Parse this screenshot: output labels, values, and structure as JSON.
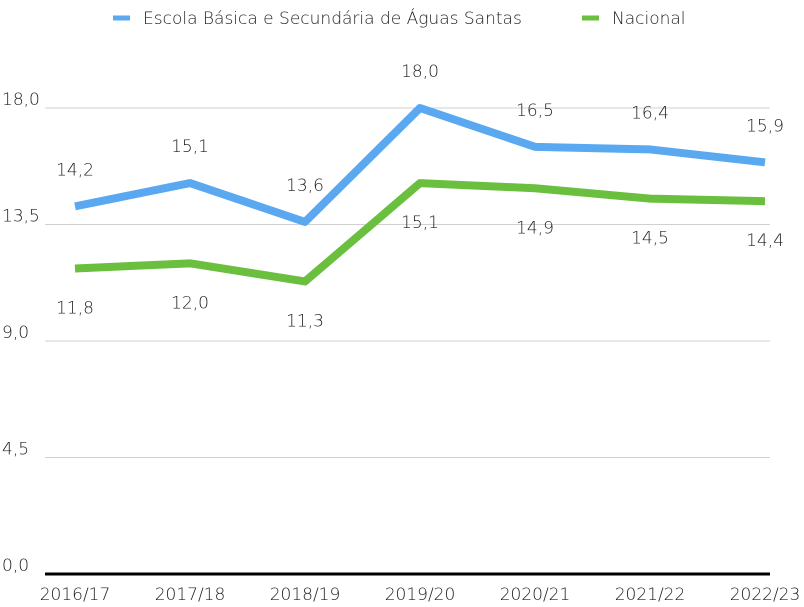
{
  "chart_data": {
    "type": "line",
    "categories": [
      "2016/17",
      "2017/18",
      "2018/19",
      "2019/20",
      "2020/21",
      "2021/22",
      "2022/23"
    ],
    "series": [
      {
        "name": "Escola Básica e Secundária de Águas Santas",
        "color": "#5aa9f0",
        "values": [
          14.2,
          15.1,
          13.6,
          18.0,
          16.5,
          16.4,
          15.9
        ],
        "value_labels": [
          "14,2",
          "15,1",
          "13,6",
          "18,0",
          "16,5",
          "16,4",
          "15,9"
        ]
      },
      {
        "name": "Nacional",
        "color": "#6abf3f",
        "values": [
          11.8,
          12.0,
          11.3,
          15.1,
          14.9,
          14.5,
          14.4
        ],
        "value_labels": [
          "11,8",
          "12,0",
          "11,3",
          "15,1",
          "14,9",
          "14,5",
          "14,4"
        ]
      }
    ],
    "ylim": [
      0,
      18
    ],
    "yticks": [
      {
        "value": 0,
        "label": "0,0"
      },
      {
        "value": 4.5,
        "label": "4,5"
      },
      {
        "value": 9,
        "label": "9,0"
      },
      {
        "value": 13.5,
        "label": "13,5"
      },
      {
        "value": 18,
        "label": "18,0"
      }
    ],
    "grid": true,
    "legend": "top"
  }
}
